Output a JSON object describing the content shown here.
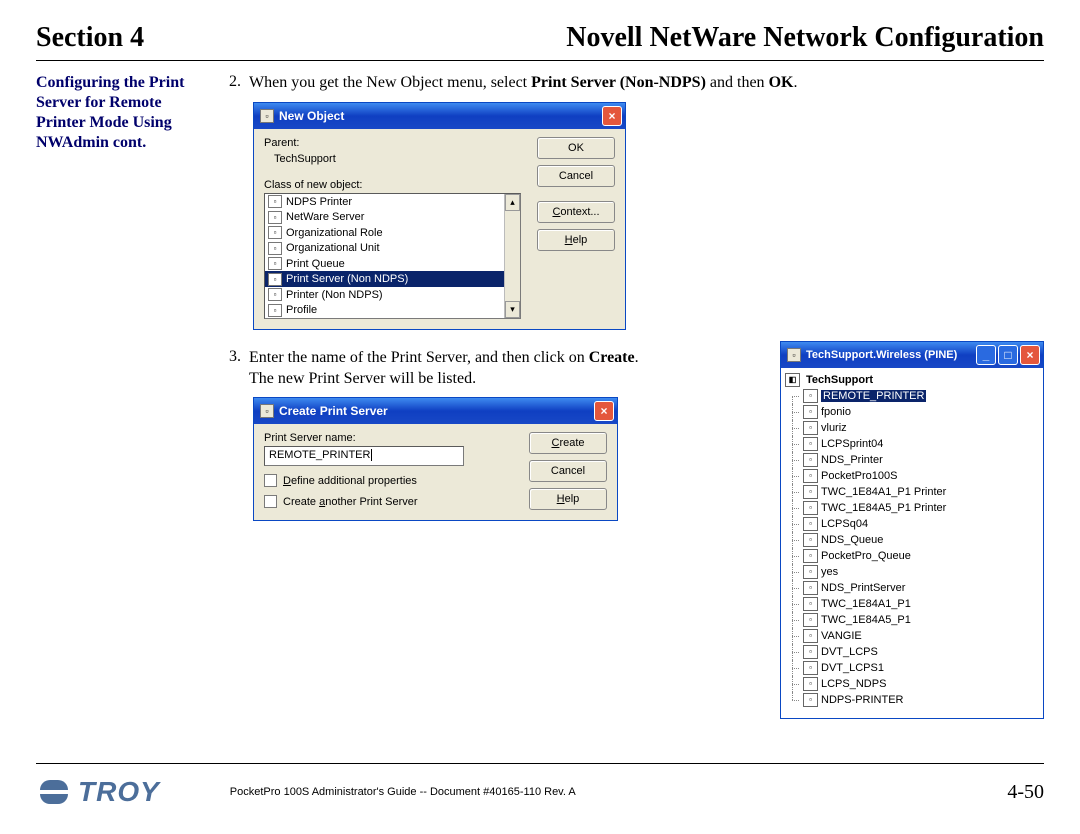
{
  "header": {
    "section": "Section 4",
    "title": "Novell NetWare Network Configuration"
  },
  "sidebar": {
    "text": "Configuring the Print Server for Remote Printer Mode Using NWAdmin cont."
  },
  "steps": {
    "s2": {
      "num": "2.",
      "pre": "When you get the New Object menu, select ",
      "bold1": "Print Server (Non-NDPS)",
      "mid": " and then ",
      "bold2": "OK",
      "post": "."
    },
    "s3": {
      "num": "3.",
      "pre": "Enter the name of the Print Server, and then click on ",
      "bold1": "Create",
      "post": ".  The new Print Server will be listed."
    }
  },
  "newobj": {
    "title": "New Object",
    "parent_label": "Parent:",
    "parent_value": "TechSupport",
    "class_label": "Class of new object:",
    "items": [
      {
        "label": "NDPS Printer",
        "sel": false
      },
      {
        "label": "NetWare Server",
        "sel": false
      },
      {
        "label": "Organizational Role",
        "sel": false
      },
      {
        "label": "Organizational Unit",
        "sel": false
      },
      {
        "label": "Print Queue",
        "sel": false
      },
      {
        "label": "Print Server (Non NDPS)",
        "sel": true
      },
      {
        "label": "Printer (Non NDPS)",
        "sel": false
      },
      {
        "label": "Profile",
        "sel": false
      }
    ],
    "buttons": {
      "ok": "OK",
      "cancel": "Cancel",
      "context": "Context...",
      "help": "Help"
    }
  },
  "create": {
    "title": "Create Print Server",
    "name_label": "Print Server name:",
    "name_value": "REMOTE_PRINTER",
    "chk1_pre": "D",
    "chk1_rest": "efine additional properties",
    "chk2_pre": "Create ",
    "chk2_u": "a",
    "chk2_rest": "nother Print Server",
    "buttons": {
      "create_u": "C",
      "create_rest": "reate",
      "cancel": "Cancel",
      "help_u": "H",
      "help_rest": "elp"
    }
  },
  "tree": {
    "title": "TechSupport.Wireless (PINE)",
    "root": "TechSupport",
    "items": [
      {
        "label": "REMOTE_PRINTER",
        "sel": true
      },
      {
        "label": "fponio"
      },
      {
        "label": "vluriz"
      },
      {
        "label": "LCPSprint04"
      },
      {
        "label": "NDS_Printer"
      },
      {
        "label": "PocketPro100S"
      },
      {
        "label": "TWC_1E84A1_P1 Printer"
      },
      {
        "label": "TWC_1E84A5_P1 Printer"
      },
      {
        "label": "LCPSq04"
      },
      {
        "label": "NDS_Queue"
      },
      {
        "label": "PocketPro_Queue"
      },
      {
        "label": "yes"
      },
      {
        "label": "NDS_PrintServer"
      },
      {
        "label": "TWC_1E84A1_P1"
      },
      {
        "label": "TWC_1E84A5_P1"
      },
      {
        "label": "VANGIE"
      },
      {
        "label": "DVT_LCPS"
      },
      {
        "label": "DVT_LCPS1"
      },
      {
        "label": "LCPS_NDPS"
      },
      {
        "label": "NDPS-PRINTER"
      }
    ]
  },
  "footer": {
    "logo": "TROY",
    "doc": "PocketPro 100S Administrator's Guide -- Document #40165-110  Rev. A",
    "page": "4-50"
  },
  "colors": {
    "xp_blue": "#0f3fc2",
    "sel": "#0a246a",
    "sidebar": "#00006b",
    "logo": "#4c6e9a"
  }
}
